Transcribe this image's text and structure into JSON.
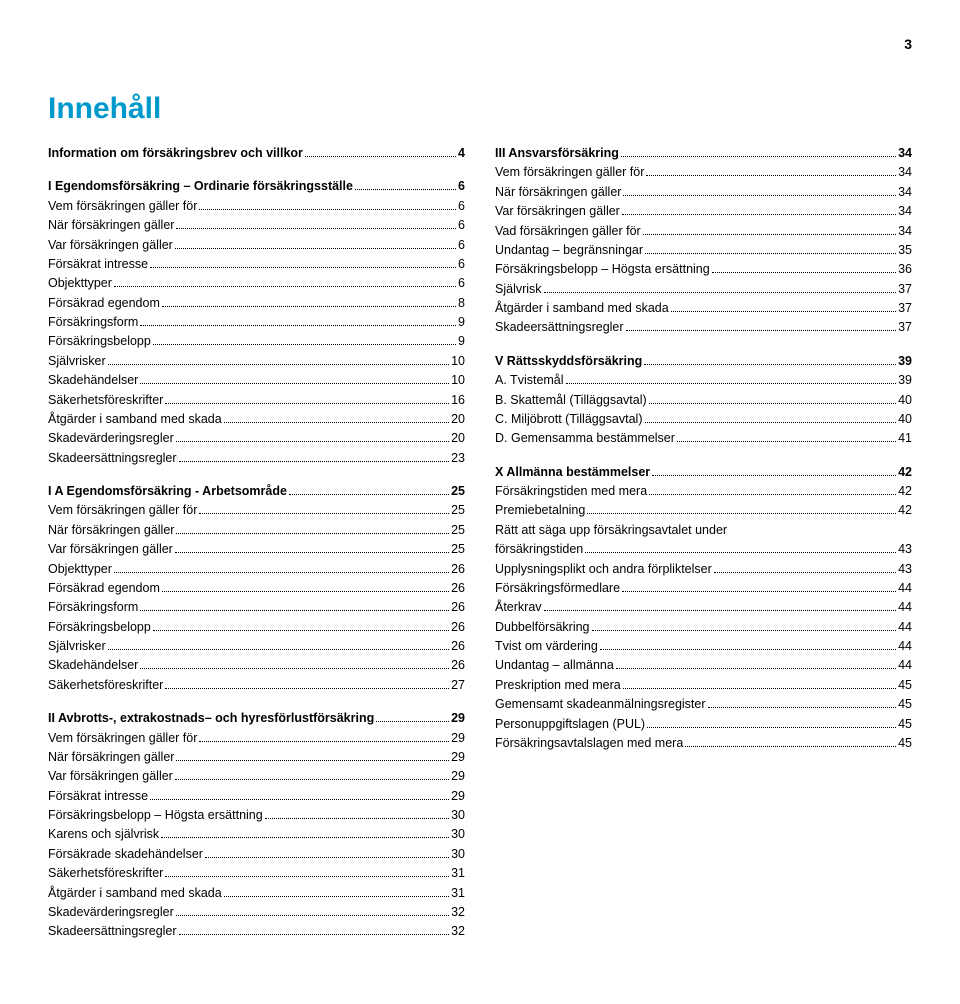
{
  "page_number": "3",
  "title": "Innehåll",
  "title_color": "#0099cc",
  "left_sections": [
    {
      "items": [
        {
          "label": "Information om försäkringsbrev och villkor",
          "page": "4",
          "bold": true
        }
      ]
    },
    {
      "items": [
        {
          "label": "I  Egendomsförsäkring – Ordinarie försäkringsställe",
          "page": "6",
          "bold": true
        },
        {
          "label": "Vem försäkringen gäller för",
          "page": "6"
        },
        {
          "label": "När försäkringen gäller",
          "page": "6"
        },
        {
          "label": "Var försäkringen gäller",
          "page": "6"
        },
        {
          "label": "Försäkrat intresse",
          "page": "6"
        },
        {
          "label": "Objekttyper",
          "page": "6"
        },
        {
          "label": "Försäkrad egendom",
          "page": "8"
        },
        {
          "label": "Försäkringsform",
          "page": "9"
        },
        {
          "label": "Försäkringsbelopp",
          "page": "9"
        },
        {
          "label": "Självrisker",
          "page": "10"
        },
        {
          "label": "Skadehändelser",
          "page": "10"
        },
        {
          "label": "Säkerhetsföreskrifter",
          "page": "16"
        },
        {
          "label": "Åtgärder i samband med skada",
          "page": "20"
        },
        {
          "label": "Skadevärderingsregler",
          "page": "20"
        },
        {
          "label": "Skadeersättningsregler",
          "page": "23"
        }
      ]
    },
    {
      "items": [
        {
          "label": "I A  Egendomsförsäkring - Arbetsområde",
          "page": "25",
          "bold": true
        },
        {
          "label": "Vem försäkringen gäller för",
          "page": "25"
        },
        {
          "label": "När försäkringen gäller",
          "page": "25"
        },
        {
          "label": "Var försäkringen gäller",
          "page": "25"
        },
        {
          "label": "Objekttyper",
          "page": "26"
        },
        {
          "label": "Försäkrad egendom",
          "page": "26"
        },
        {
          "label": "Försäkringsform",
          "page": "26"
        },
        {
          "label": "Försäkringsbelopp",
          "page": "26"
        },
        {
          "label": "Självrisker",
          "page": "26"
        },
        {
          "label": "Skadehändelser",
          "page": "26"
        },
        {
          "label": "Säkerhetsföreskrifter",
          "page": "27"
        }
      ]
    },
    {
      "items": [
        {
          "label": "II  Avbrotts-, extrakostnads– och hyresförlustförsäkring",
          "page": "29",
          "bold": true
        },
        {
          "label": "Vem försäkringen gäller för",
          "page": "29"
        },
        {
          "label": "När försäkringen gäller",
          "page": "29"
        },
        {
          "label": "Var försäkringen gäller",
          "page": "29"
        },
        {
          "label": "Försäkrat intresse",
          "page": "29"
        },
        {
          "label": "Försäkringsbelopp – Högsta ersättning",
          "page": "30"
        },
        {
          "label": "Karens och självrisk",
          "page": "30"
        },
        {
          "label": "Försäkrade skadehändelser",
          "page": "30"
        },
        {
          "label": "Säkerhetsföreskrifter",
          "page": "31"
        },
        {
          "label": "Åtgärder i samband med skada",
          "page": "31"
        },
        {
          "label": "Skadevärderingsregler",
          "page": "32"
        },
        {
          "label": "Skadeersättningsregler",
          "page": "32"
        }
      ]
    }
  ],
  "right_sections": [
    {
      "items": [
        {
          "label": "III  Ansvarsförsäkring",
          "page": "34",
          "bold": true
        },
        {
          "label": "Vem försäkringen gäller för",
          "page": "34"
        },
        {
          "label": "När försäkringen gäller",
          "page": "34"
        },
        {
          "label": "Var försäkringen gäller",
          "page": "34"
        },
        {
          "label": "Vad försäkringen gäller för",
          "page": "34"
        },
        {
          "label": "Undantag – begränsningar",
          "page": "35"
        },
        {
          "label": "Försäkringsbelopp – Högsta ersättning",
          "page": "36"
        },
        {
          "label": "Självrisk",
          "page": "37"
        },
        {
          "label": "Åtgärder i samband med skada",
          "page": "37"
        },
        {
          "label": "Skadeersättningsregler",
          "page": "37"
        }
      ]
    },
    {
      "items": [
        {
          "label": "V  Rättsskyddsförsäkring",
          "page": " 39",
          "bold": true
        },
        {
          "label": "A. Tvistemål",
          "page": "39"
        },
        {
          "label": "B. Skattemål (Tilläggsavtal)",
          "page": "40"
        },
        {
          "label": "C. Miljöbrott (Tilläggsavtal)",
          "page": "40"
        },
        {
          "label": "D. Gemensamma bestämmelser",
          "page": "41"
        }
      ]
    },
    {
      "items": [
        {
          "label": "X  Allmänna bestämmelser",
          "page": "42",
          "bold": true
        },
        {
          "label": "Försäkringstiden med mera",
          "page": "42"
        },
        {
          "label": "Premiebetalning",
          "page": "42"
        },
        {
          "label": "Rätt att säga upp försäkringsavtalet under",
          "extra": true
        },
        {
          "label": "försäkringstiden",
          "page": "43"
        },
        {
          "label": "Upplysningsplikt och andra förpliktelser",
          "page": "43"
        },
        {
          "label": "Försäkringsförmedlare",
          "page": "44"
        },
        {
          "label": "Återkrav",
          "page": "44"
        },
        {
          "label": "Dubbelförsäkring",
          "page": "44"
        },
        {
          "label": "Tvist om värdering",
          "page": "44"
        },
        {
          "label": "Undantag – allmänna",
          "page": "44"
        },
        {
          "label": "Preskription med mera",
          "page": "45"
        },
        {
          "label": "Gemensamt skadeanmälningsregister",
          "page": "45"
        },
        {
          "label": "Personuppgiftslagen (PUL)",
          "page": "45"
        },
        {
          "label": "Försäkringsavtalslagen med mera",
          "page": "45"
        }
      ]
    }
  ]
}
